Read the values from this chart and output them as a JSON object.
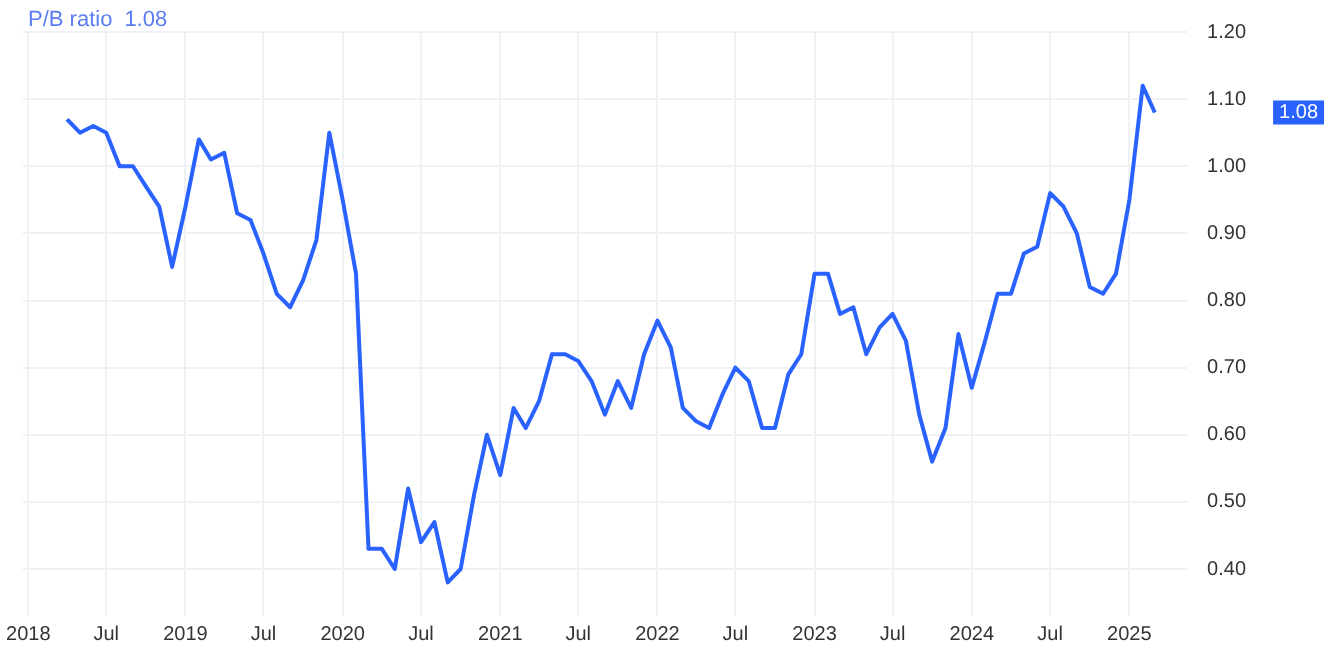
{
  "chart_data": {
    "type": "line",
    "title": "P/B ratio",
    "annotations": [
      "1.08",
      "1.08"
    ],
    "x": [
      "2018-04",
      "2018-05",
      "2018-06",
      "2018-07",
      "2018-08",
      "2018-09",
      "2018-10",
      "2018-11",
      "2018-12",
      "2019-01",
      "2019-02",
      "2019-03",
      "2019-04",
      "2019-05",
      "2019-06",
      "2019-07",
      "2019-08",
      "2019-09",
      "2019-10",
      "2019-11",
      "2019-12",
      "2020-01",
      "2020-02",
      "2020-03",
      "2020-04",
      "2020-05",
      "2020-06",
      "2020-07",
      "2020-08",
      "2020-09",
      "2020-10",
      "2020-11",
      "2020-12",
      "2021-01",
      "2021-02",
      "2021-03",
      "2021-04",
      "2021-05",
      "2021-06",
      "2021-07",
      "2021-08",
      "2021-09",
      "2021-10",
      "2021-11",
      "2021-12",
      "2022-01",
      "2022-02",
      "2022-03",
      "2022-04",
      "2022-05",
      "2022-06",
      "2022-07",
      "2022-08",
      "2022-09",
      "2022-10",
      "2022-11",
      "2022-12",
      "2023-01",
      "2023-02",
      "2023-03",
      "2023-04",
      "2023-05",
      "2023-06",
      "2023-07",
      "2023-08",
      "2023-09",
      "2023-10",
      "2023-11",
      "2023-12",
      "2024-01",
      "2024-02",
      "2024-03",
      "2024-04",
      "2024-05",
      "2024-06",
      "2024-07",
      "2024-08",
      "2024-09",
      "2024-10",
      "2024-11",
      "2024-12",
      "2025-01",
      "2025-02",
      "2025-03"
    ],
    "series": [
      {
        "color": "#2962ff",
        "values": [
          1.07,
          1.05,
          1.06,
          1.05,
          1.0,
          1.0,
          0.97,
          0.94,
          0.85,
          0.94,
          1.04,
          1.01,
          1.02,
          0.93,
          0.92,
          0.87,
          0.81,
          0.79,
          0.83,
          0.89,
          1.05,
          0.95,
          0.84,
          0.43,
          0.43,
          0.4,
          0.52,
          0.44,
          0.47,
          0.38,
          0.4,
          0.51,
          0.6,
          0.54,
          0.64,
          0.61,
          0.65,
          0.72,
          0.72,
          0.71,
          0.68,
          0.63,
          0.68,
          0.64,
          0.72,
          0.77,
          0.73,
          0.64,
          0.62,
          0.61,
          0.66,
          0.7,
          0.68,
          0.61,
          0.61,
          0.69,
          0.72,
          0.84,
          0.84,
          0.78,
          0.79,
          0.72,
          0.76,
          0.78,
          0.74,
          0.63,
          0.56,
          0.61,
          0.75,
          0.67,
          0.74,
          0.81,
          0.81,
          0.87,
          0.88,
          0.96,
          0.94,
          0.9,
          0.82,
          0.81,
          0.84,
          0.95,
          1.12,
          1.08
        ]
      }
    ],
    "xlim": [
      "2017-12-19",
      "2025-05-15"
    ],
    "xticks": [
      {
        "value": "2018",
        "label": "2018"
      },
      {
        "value": "2018-07",
        "label": "Jul"
      },
      {
        "value": "2019",
        "label": "2019"
      },
      {
        "value": "2019-07",
        "label": "Jul"
      },
      {
        "value": "2020",
        "label": "2020"
      },
      {
        "value": "2020-07",
        "label": "Jul"
      },
      {
        "value": "2021",
        "label": "2021"
      },
      {
        "value": "2021-07",
        "label": "Jul"
      },
      {
        "value": "2022",
        "label": "2022"
      },
      {
        "value": "2022-07",
        "label": "Jul"
      },
      {
        "value": "2023",
        "label": "2023"
      },
      {
        "value": "2023-07",
        "label": "Jul"
      },
      {
        "value": "2024",
        "label": "2024"
      },
      {
        "value": "2024-07",
        "label": "Jul"
      },
      {
        "value": "2025",
        "label": "2025"
      }
    ],
    "ylim": [
      0.33,
      1.2
    ],
    "yticks": [
      {
        "value": 0.4,
        "label": "0.40"
      },
      {
        "value": 0.5,
        "label": "0.50"
      },
      {
        "value": 0.6,
        "label": "0.60"
      },
      {
        "value": 0.7,
        "label": "0.70"
      },
      {
        "value": 0.8,
        "label": "0.80"
      },
      {
        "value": 0.9,
        "label": "0.90"
      },
      {
        "value": 1.0,
        "label": "1.00"
      },
      {
        "value": 1.1,
        "label": "1.10"
      },
      {
        "value": 1.2,
        "label": "1.20"
      }
    ],
    "grid": true,
    "legend": false,
    "marker": "none",
    "line_style": "solid"
  }
}
